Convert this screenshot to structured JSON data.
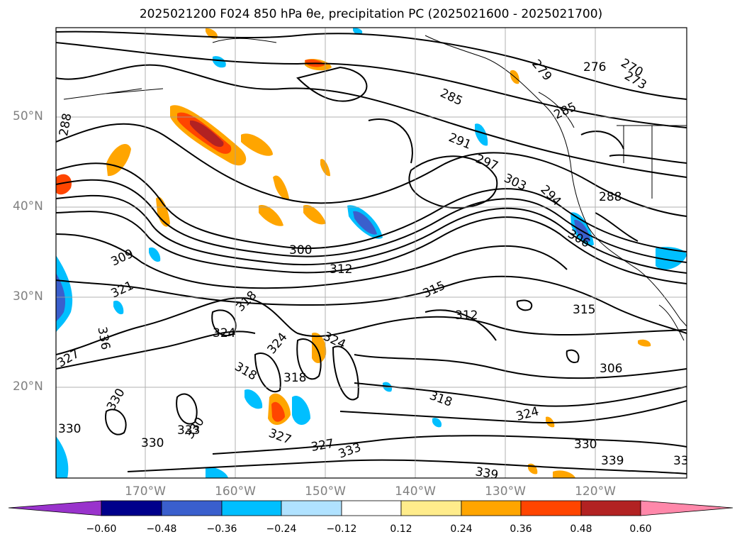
{
  "title": "2025021200 F024 850 hPa θe, precipitation PC (2025021600 - 2025021700)",
  "map": {
    "region": "North Pacific",
    "field": "850 hPa equivalent potential temperature contours with precipitation PC shading",
    "lat_labels": [
      "50°N",
      "40°N",
      "30°N",
      "20°N"
    ],
    "lon_labels": [
      "170°W",
      "160°W",
      "150°W",
      "140°W",
      "130°W",
      "120°W"
    ],
    "contour_labels": [
      "270",
      "273",
      "276",
      "279",
      "285",
      "285",
      "288",
      "288",
      "291",
      "297",
      "303",
      "294",
      "306",
      "300",
      "309",
      "312",
      "315",
      "315",
      "312",
      "318",
      "321",
      "324",
      "324",
      "324",
      "327",
      "327",
      "318",
      "318",
      "330",
      "330",
      "333",
      "330",
      "339",
      "339",
      "336",
      "306",
      "318",
      "324",
      "330",
      "327",
      "333",
      "330",
      "33"
    ]
  },
  "colorbar": {
    "ticks": [
      "−0.60",
      "−0.48",
      "−0.36",
      "−0.24",
      "−0.12",
      "0.12",
      "0.24",
      "0.36",
      "0.48",
      "0.60"
    ],
    "colors": [
      "#9933cc",
      "#00008b",
      "#3a5fcd",
      "#00bfff",
      "#b0e2ff",
      "#ffffff",
      "#ffec8b",
      "#ffa500",
      "#ff4500",
      "#b22222",
      "#ff88aa"
    ]
  }
}
